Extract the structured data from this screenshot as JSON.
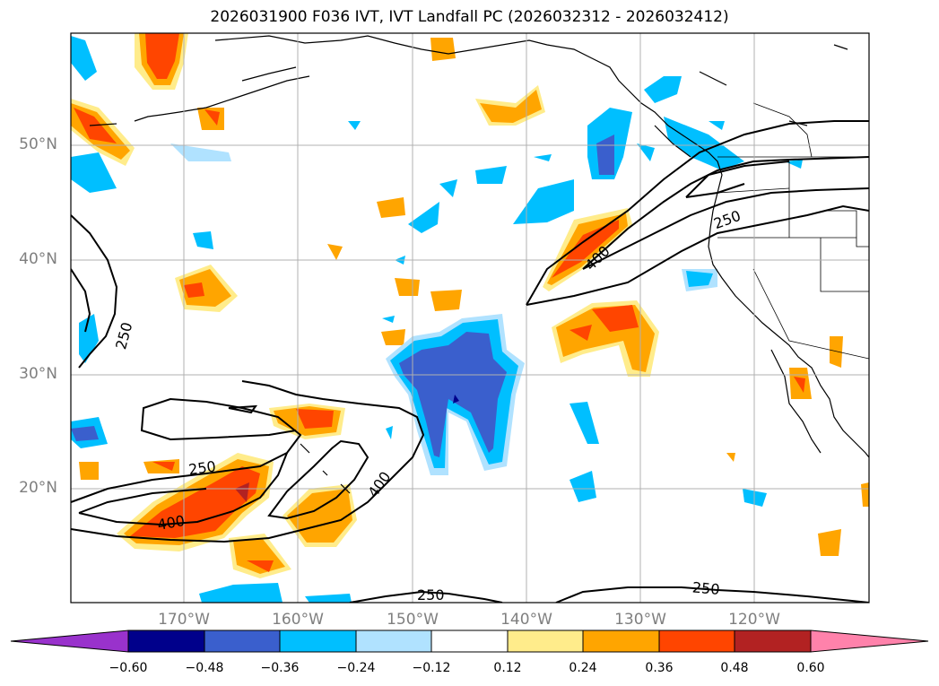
{
  "title": "2026031900 F036 IVT, IVT Landfall PC (2026032312 - 2026032412)",
  "lat_labels": [
    "50°N",
    "40°N",
    "30°N",
    "20°N"
  ],
  "lon_labels": [
    "170°W",
    "160°W",
    "150°W",
    "140°W",
    "130°W",
    "120°W"
  ],
  "contour_labels": [
    "250",
    "400",
    "250",
    "400",
    "250",
    "400",
    "250",
    "250"
  ],
  "colorbar": {
    "ticks": [
      "−0.60",
      "−0.48",
      "−0.36",
      "−0.24",
      "−0.12",
      "0.12",
      "0.24",
      "0.36",
      "0.48",
      "0.60"
    ],
    "colors": [
      "#9932cc",
      "#00008b",
      "#3a5fcd",
      "#00bfff",
      "#b0e2ff",
      "#ffffff",
      "#ffec8b",
      "#ffa500",
      "#ff4500",
      "#b22222",
      "#ff82ab"
    ]
  },
  "colors": {
    "grid": "#b0b0b0",
    "coast": "#000000",
    "contour": "#000000"
  }
}
